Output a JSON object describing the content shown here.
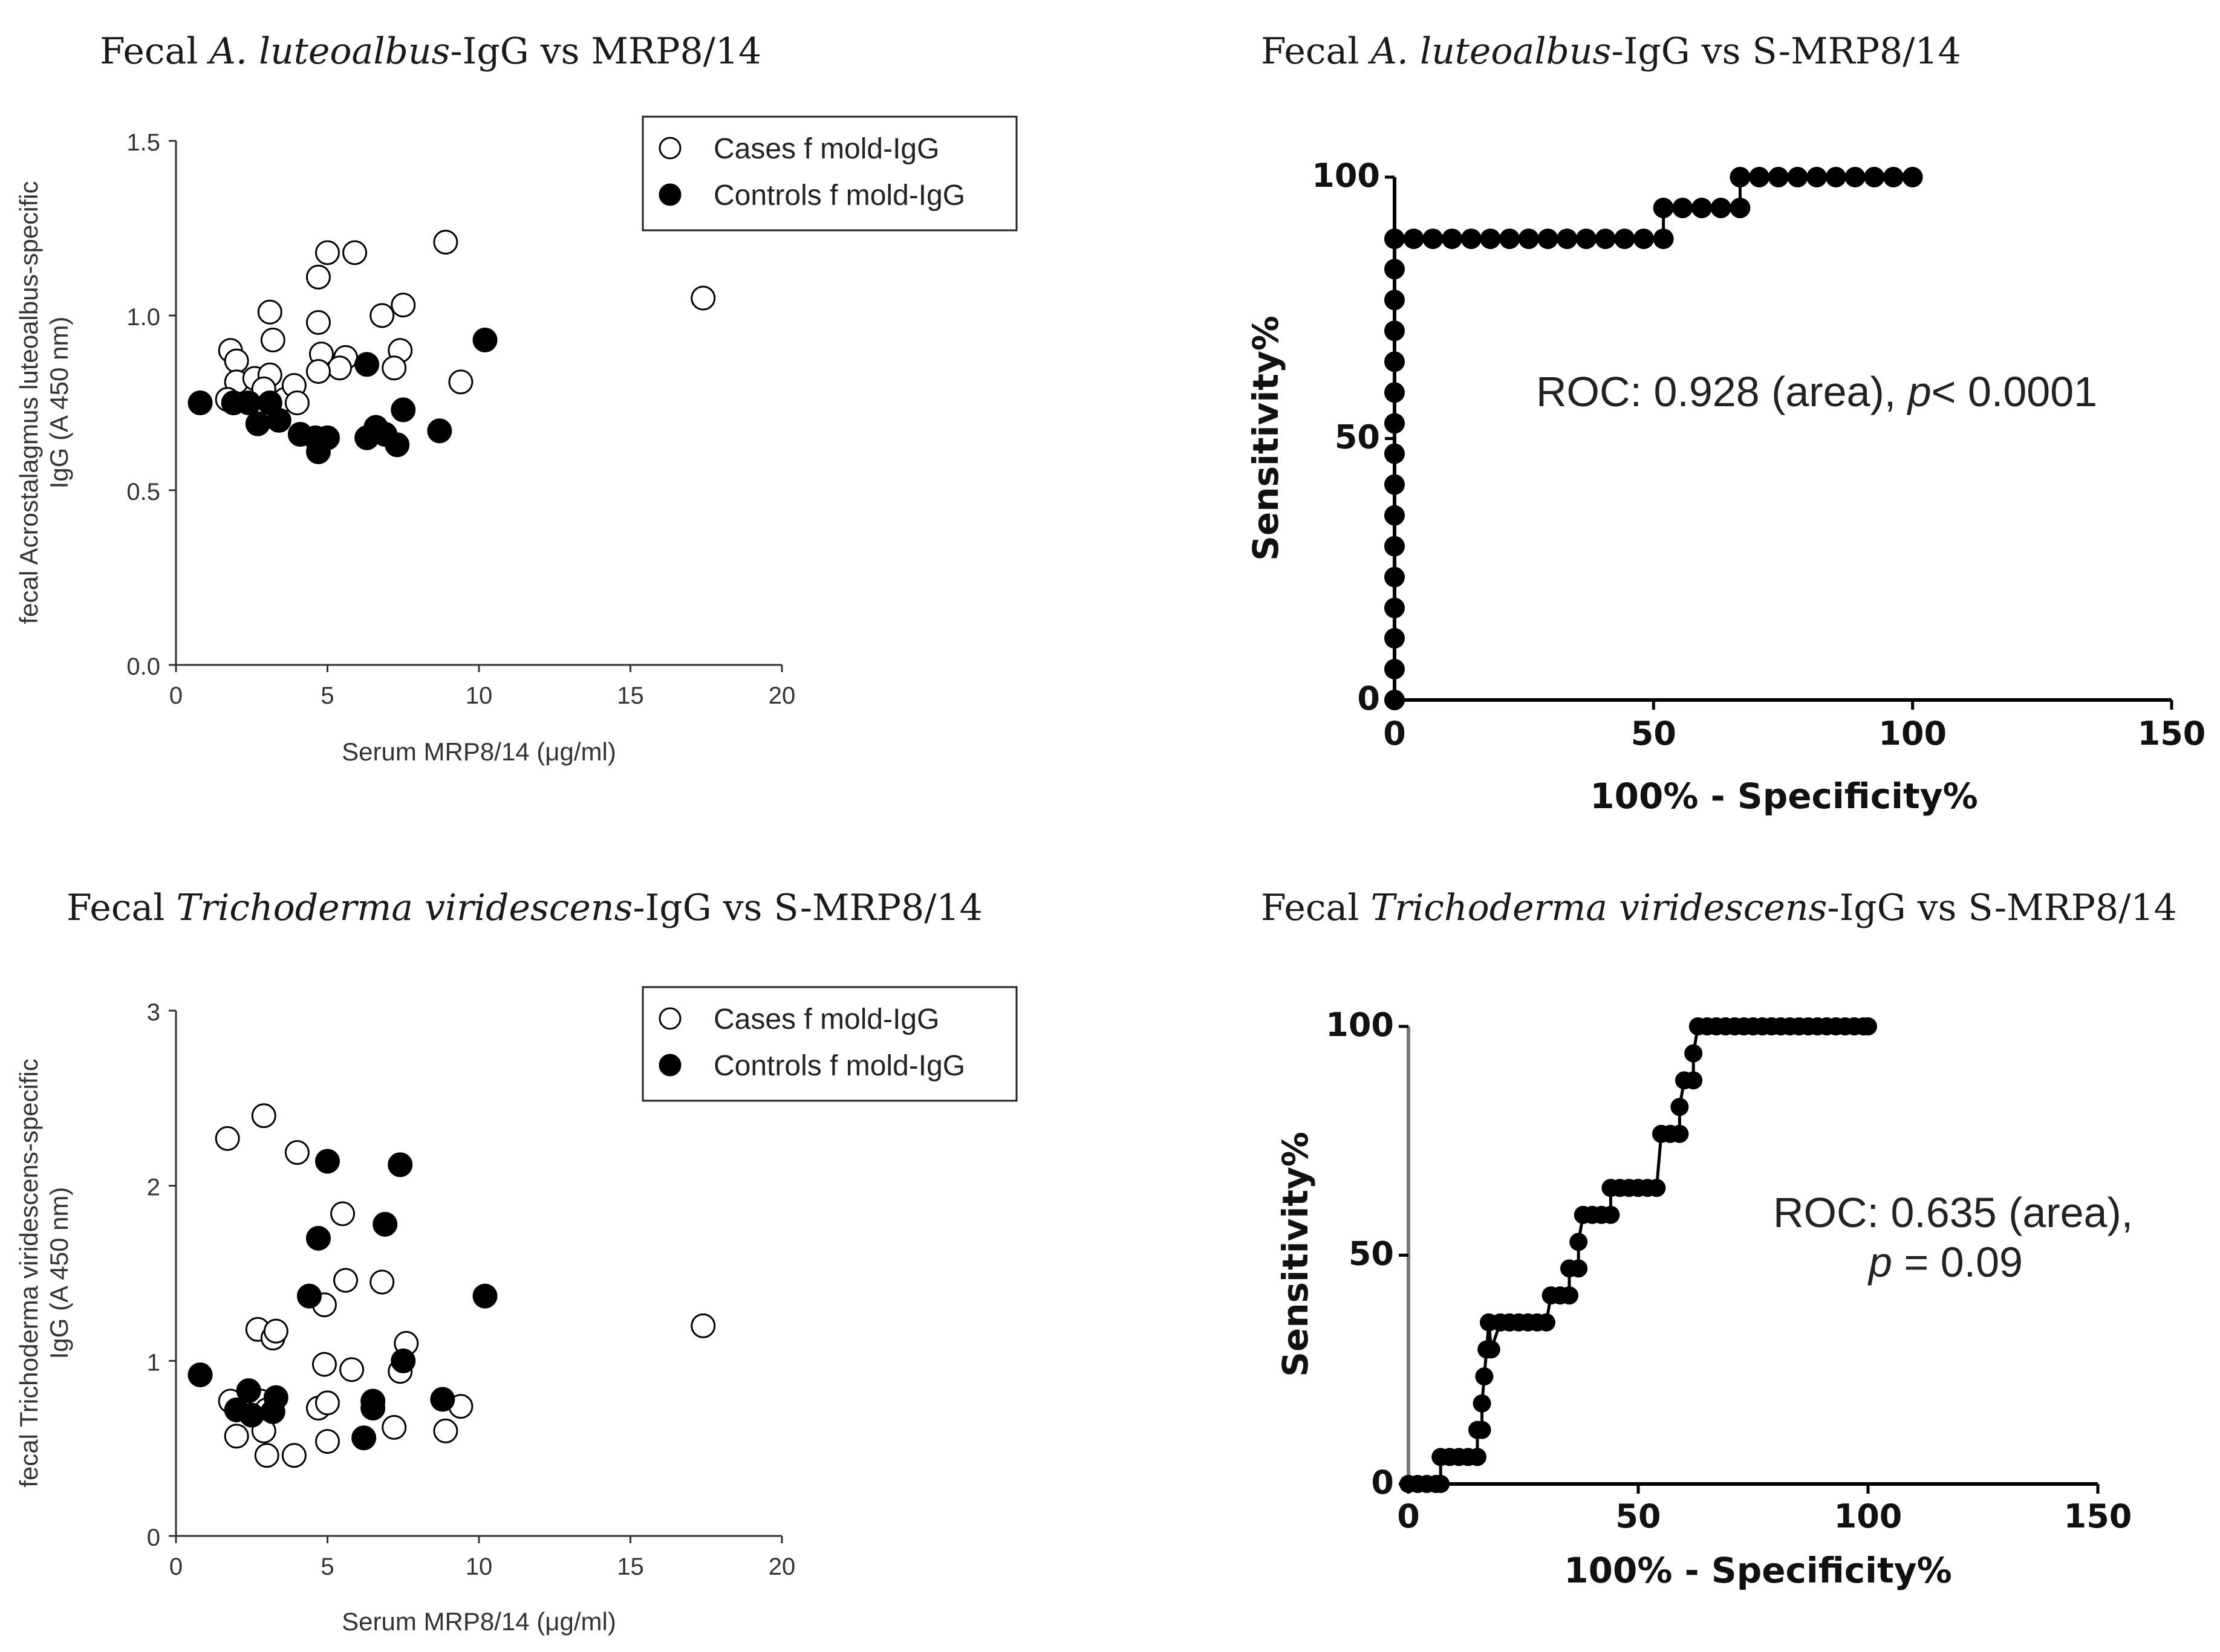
{
  "panels": {
    "a": {
      "title_pre": "Fecal ",
      "title_italic": "A. luteoalbus",
      "title_post": "-IgG vs MRP8/14"
    },
    "b": {
      "title_pre": "Fecal ",
      "title_italic": "A. luteoalbus",
      "title_post": "-IgG vs S-MRP8/14"
    },
    "c": {
      "title_pre": "Fecal ",
      "title_italic": "Trichoderma viridescens",
      "title_post": "-IgG vs S-MRP8/14"
    },
    "d": {
      "title_pre": "Fecal ",
      "title_italic": "Trichoderma viridescens",
      "title_post": "-IgG vs S-MRP8/14"
    }
  },
  "colors": {
    "ink": "#111111",
    "axis": "#333333",
    "marker_fill_case": "#ffffff",
    "marker_fill_control": "#000000"
  },
  "chart_data": [
    {
      "type": "scatter",
      "title": "Fecal A. luteoalbus-IgG vs MRP8/14",
      "xlabel": "Serum MRP8/14 (μg/ml)",
      "ylabel_line1": "fecal Acrostalagmus luteoalbus-specific",
      "ylabel_line2": "IgG (A 450 nm)",
      "xlim": [
        0,
        20
      ],
      "ylim": [
        0,
        1.5
      ],
      "xticks": [
        "0",
        "5",
        "10",
        "15",
        "20"
      ],
      "yticks": [
        "0.0",
        "0.5",
        "1.0",
        "1.5"
      ],
      "legend_position": "top-right",
      "series": [
        {
          "name": "Cases f mold-IgG",
          "marker": "open-circle",
          "points": [
            [
              1.8,
              0.9
            ],
            [
              2.0,
              0.87
            ],
            [
              2.0,
              0.81
            ],
            [
              1.7,
              0.76
            ],
            [
              2.6,
              0.82
            ],
            [
              3.1,
              1.01
            ],
            [
              3.2,
              0.93
            ],
            [
              3.1,
              0.83
            ],
            [
              2.9,
              0.79
            ],
            [
              3.6,
              0.76
            ],
            [
              3.9,
              0.8
            ],
            [
              4.0,
              0.75
            ],
            [
              4.7,
              1.11
            ],
            [
              5.0,
              1.18
            ],
            [
              5.9,
              1.18
            ],
            [
              4.7,
              0.98
            ],
            [
              4.8,
              0.89
            ],
            [
              5.6,
              0.88
            ],
            [
              5.4,
              0.85
            ],
            [
              4.7,
              0.84
            ],
            [
              6.8,
              1.0
            ],
            [
              7.5,
              1.03
            ],
            [
              7.4,
              0.9
            ],
            [
              7.2,
              0.85
            ],
            [
              8.9,
              1.21
            ],
            [
              9.4,
              0.81
            ],
            [
              17.4,
              1.05
            ]
          ]
        },
        {
          "name": "Controls f mold-IgG",
          "marker": "filled-circle",
          "points": [
            [
              0.8,
              0.75
            ],
            [
              1.9,
              0.75
            ],
            [
              2.4,
              0.75
            ],
            [
              2.7,
              0.69
            ],
            [
              3.1,
              0.75
            ],
            [
              3.4,
              0.7
            ],
            [
              4.1,
              0.66
            ],
            [
              4.6,
              0.65
            ],
            [
              4.7,
              0.61
            ],
            [
              5.0,
              0.65
            ],
            [
              6.3,
              0.86
            ],
            [
              6.3,
              0.65
            ],
            [
              6.6,
              0.68
            ],
            [
              6.9,
              0.66
            ],
            [
              7.3,
              0.63
            ],
            [
              7.5,
              0.73
            ],
            [
              8.7,
              0.67
            ],
            [
              10.2,
              0.93
            ]
          ]
        }
      ]
    },
    {
      "type": "line",
      "title": "Fecal A. luteoalbus-IgG vs S-MRP8/14",
      "xlabel": "100% - Specificity%",
      "ylabel": "Sensitivity%",
      "xlim": [
        0,
        150
      ],
      "ylim": [
        0,
        100
      ],
      "xticks": [
        "0",
        "50",
        "100",
        "150"
      ],
      "yticks": [
        "0",
        "50",
        "100"
      ],
      "annotation_pre": "ROC: 0.928 (area), ",
      "annotation_italic": "p",
      "annotation_post": "< 0.0001",
      "series": [
        {
          "marker": "filled-circle",
          "points": [
            [
              0,
              0
            ],
            [
              0,
              5.9
            ],
            [
              0,
              11.8
            ],
            [
              0,
              17.6
            ],
            [
              0,
              23.5
            ],
            [
              0,
              29.4
            ],
            [
              0,
              35.3
            ],
            [
              0,
              41.2
            ],
            [
              0,
              47.1
            ],
            [
              0,
              52.9
            ],
            [
              0,
              58.8
            ],
            [
              0,
              64.7
            ],
            [
              0,
              70.6
            ],
            [
              0,
              76.5
            ],
            [
              0,
              82.4
            ],
            [
              0,
              88.2
            ],
            [
              3.7,
              88.2
            ],
            [
              7.4,
              88.2
            ],
            [
              11.1,
              88.2
            ],
            [
              14.8,
              88.2
            ],
            [
              18.5,
              88.2
            ],
            [
              22.2,
              88.2
            ],
            [
              25.9,
              88.2
            ],
            [
              29.6,
              88.2
            ],
            [
              33.3,
              88.2
            ],
            [
              37.0,
              88.2
            ],
            [
              40.7,
              88.2
            ],
            [
              44.4,
              88.2
            ],
            [
              48.1,
              88.2
            ],
            [
              51.9,
              88.2
            ],
            [
              51.9,
              94.1
            ],
            [
              55.6,
              94.1
            ],
            [
              59.3,
              94.1
            ],
            [
              63.0,
              94.1
            ],
            [
              66.7,
              94.1
            ],
            [
              66.7,
              100
            ],
            [
              70.4,
              100
            ],
            [
              74.1,
              100
            ],
            [
              77.8,
              100
            ],
            [
              81.5,
              100
            ],
            [
              85.2,
              100
            ],
            [
              88.9,
              100
            ],
            [
              92.6,
              100
            ],
            [
              96.3,
              100
            ],
            [
              100,
              100
            ]
          ]
        }
      ]
    },
    {
      "type": "scatter",
      "title": "Fecal Trichoderma viridescens-IgG vs S-MRP8/14",
      "xlabel": "Serum MRP8/14 (μg/ml)",
      "ylabel_line1": "fecal Trichoderma viridescens-specific",
      "ylabel_line2": "IgG (A 450 nm)",
      "xlim": [
        0,
        20
      ],
      "ylim": [
        0,
        3
      ],
      "xticks": [
        "0",
        "5",
        "10",
        "15",
        "20"
      ],
      "yticks": [
        "0",
        "1",
        "2",
        "3"
      ],
      "legend_position": "top-right",
      "series": [
        {
          "name": "Cases f mold-IgG",
          "marker": "open-circle",
          "points": [
            [
              1.7,
              2.27
            ],
            [
              2.9,
              2.4
            ],
            [
              4.0,
              2.19
            ],
            [
              5.5,
              1.84
            ],
            [
              5.6,
              1.46
            ],
            [
              6.8,
              1.45
            ],
            [
              4.9,
              1.32
            ],
            [
              2.7,
              1.18
            ],
            [
              3.2,
              1.13
            ],
            [
              3.3,
              1.17
            ],
            [
              7.6,
              1.1
            ],
            [
              7.4,
              0.94
            ],
            [
              4.9,
              0.98
            ],
            [
              5.8,
              0.95
            ],
            [
              1.8,
              0.77
            ],
            [
              2.0,
              0.57
            ],
            [
              2.8,
              0.77
            ],
            [
              3.0,
              0.72
            ],
            [
              2.9,
              0.6
            ],
            [
              3.0,
              0.46
            ],
            [
              3.9,
              0.46
            ],
            [
              4.7,
              0.73
            ],
            [
              5.0,
              0.76
            ],
            [
              5.0,
              0.54
            ],
            [
              7.2,
              0.62
            ],
            [
              8.9,
              0.6
            ],
            [
              9.4,
              0.74
            ],
            [
              17.4,
              1.2
            ]
          ]
        },
        {
          "name": "Controls f mold-IgG",
          "marker": "filled-circle",
          "points": [
            [
              0.8,
              0.92
            ],
            [
              2.0,
              0.72
            ],
            [
              2.4,
              0.83
            ],
            [
              2.5,
              0.69
            ],
            [
              3.2,
              0.71
            ],
            [
              3.3,
              0.79
            ],
            [
              4.4,
              1.37
            ],
            [
              4.7,
              1.7
            ],
            [
              5.0,
              2.14
            ],
            [
              6.2,
              0.56
            ],
            [
              6.5,
              0.77
            ],
            [
              6.5,
              0.73
            ],
            [
              6.9,
              1.78
            ],
            [
              7.4,
              2.12
            ],
            [
              7.5,
              1.0
            ],
            [
              8.8,
              0.78
            ],
            [
              10.2,
              1.37
            ]
          ]
        }
      ]
    },
    {
      "type": "line",
      "title": "Fecal Trichoderma viridescens-IgG vs S-MRP8/14",
      "xlabel": "100% - Specificity%",
      "ylabel": "Sensitivity%",
      "xlim": [
        0,
        150
      ],
      "ylim": [
        0,
        100
      ],
      "xticks": [
        "0",
        "50",
        "100",
        "150"
      ],
      "yticks": [
        "0",
        "50",
        "100"
      ],
      "annotation_line1": "ROC: 0.635 (area),",
      "annotation_italic": "p",
      "annotation_post": " = 0.09",
      "series": [
        {
          "marker": "filled-circle",
          "points": [
            [
              0,
              0
            ],
            [
              2,
              0
            ],
            [
              4,
              0
            ],
            [
              6,
              0
            ],
            [
              7,
              0
            ],
            [
              7,
              5.9
            ],
            [
              9,
              5.9
            ],
            [
              11,
              5.9
            ],
            [
              13,
              5.9
            ],
            [
              15,
              5.9
            ],
            [
              15,
              11.8
            ],
            [
              16,
              11.8
            ],
            [
              16,
              17.6
            ],
            [
              16.5,
              23.5
            ],
            [
              17,
              29.4
            ],
            [
              17.5,
              35.3
            ],
            [
              18,
              29.4
            ],
            [
              20,
              35.3
            ],
            [
              22,
              35.3
            ],
            [
              24,
              35.3
            ],
            [
              26,
              35.3
            ],
            [
              28,
              35.3
            ],
            [
              30,
              35.3
            ],
            [
              31,
              41.2
            ],
            [
              33,
              41.2
            ],
            [
              35,
              41.2
            ],
            [
              35,
              47.1
            ],
            [
              37,
              47.1
            ],
            [
              37,
              52.9
            ],
            [
              38,
              58.8
            ],
            [
              40,
              58.8
            ],
            [
              42,
              58.8
            ],
            [
              44,
              58.8
            ],
            [
              44,
              64.7
            ],
            [
              46,
              64.7
            ],
            [
              48,
              64.7
            ],
            [
              50,
              64.7
            ],
            [
              52,
              64.7
            ],
            [
              54,
              64.7
            ],
            [
              55,
              76.5
            ],
            [
              57,
              76.5
            ],
            [
              59,
              76.5
            ],
            [
              59,
              82.4
            ],
            [
              60,
              88.2
            ],
            [
              62,
              88.2
            ],
            [
              62,
              94.1
            ],
            [
              63,
              100
            ],
            [
              65,
              100
            ],
            [
              67,
              100
            ],
            [
              69,
              100
            ],
            [
              71,
              100
            ],
            [
              73,
              100
            ],
            [
              75,
              100
            ],
            [
              77,
              100
            ],
            [
              79,
              100
            ],
            [
              81,
              100
            ],
            [
              83,
              100
            ],
            [
              85,
              100
            ],
            [
              87,
              100
            ],
            [
              89,
              100
            ],
            [
              91,
              100
            ],
            [
              93,
              100
            ],
            [
              95,
              100
            ],
            [
              97,
              100
            ],
            [
              99,
              100
            ],
            [
              100,
              100
            ]
          ]
        }
      ]
    }
  ]
}
